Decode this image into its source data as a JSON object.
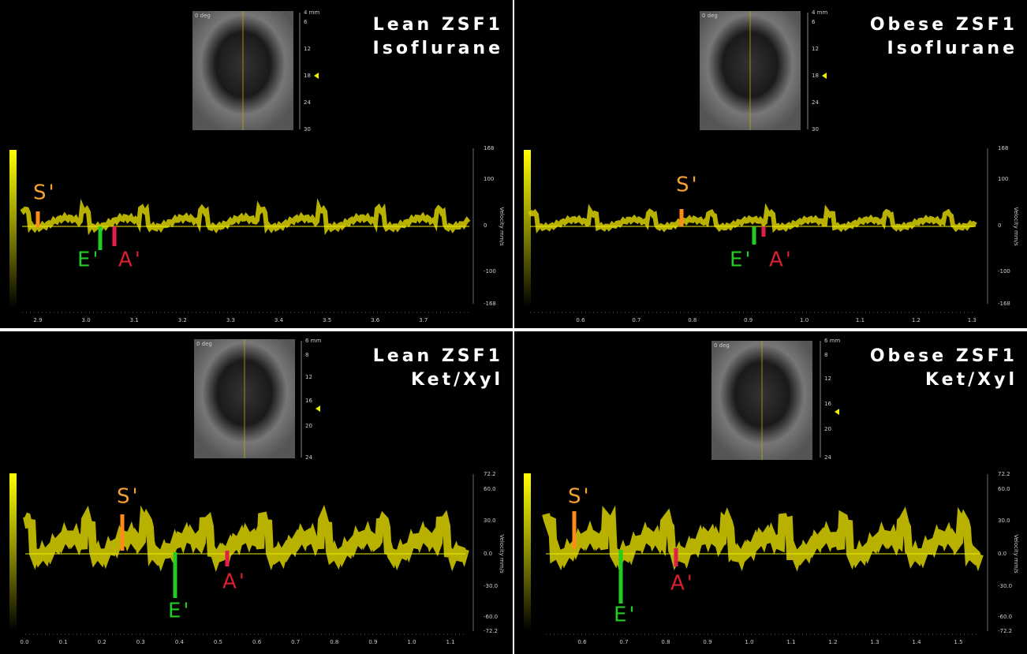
{
  "panels": [
    {
      "title": [
        "Lean ZSF1",
        "Isoflurane"
      ],
      "image_label": "0 deg",
      "depth_ticks": [
        "4 mm",
        "6",
        "12",
        "18",
        "24",
        "30"
      ],
      "velocity_label": "Velocity mm/s",
      "velocity_ticks": [
        "168",
        "100",
        "0",
        "-100",
        "-168"
      ],
      "time_ticks": [
        "2.9",
        "3.0",
        "3.1",
        "3.2",
        "3.3",
        "3.4",
        "3.5",
        "3.6",
        "3.7"
      ],
      "markers": [
        {
          "label": "S'"
        },
        {
          "label": "E'"
        },
        {
          "label": "A'"
        }
      ]
    },
    {
      "title": [
        "Obese ZSF1",
        "Isoflurane"
      ],
      "image_label": "0 deg",
      "depth_ticks": [
        "4 mm",
        "6",
        "12",
        "18",
        "24",
        "30"
      ],
      "velocity_label": "Velocity mm/s",
      "velocity_ticks": [
        "168",
        "100",
        "0",
        "-100",
        "-168"
      ],
      "time_ticks": [
        "0.6",
        "0.7",
        "0.8",
        "0.9",
        "1.0",
        "1.1",
        "1.2",
        "1.3"
      ],
      "markers": [
        {
          "label": "S'"
        },
        {
          "label": "E'"
        },
        {
          "label": "A'"
        }
      ]
    },
    {
      "title": [
        "Lean ZSF1",
        "Ket/Xyl"
      ],
      "image_label": "0 deg",
      "depth_ticks": [
        "6 mm",
        "8",
        "12",
        "16",
        "20",
        "24"
      ],
      "velocity_label": "Velocity mm/s",
      "velocity_ticks": [
        "72.2",
        "60.0",
        "30.0",
        "0.0",
        "-30.0",
        "-60.0",
        "-72.2"
      ],
      "time_ticks": [
        "0.0",
        "0.1",
        "0.2",
        "0.3",
        "0.4",
        "0.5",
        "0.6",
        "0.7",
        "0.8",
        "0.9",
        "1.0",
        "1.1"
      ],
      "markers": [
        {
          "label": "S'"
        },
        {
          "label": "E'"
        },
        {
          "label": "A'"
        }
      ]
    },
    {
      "title": [
        "Obese ZSF1",
        "Ket/Xyl"
      ],
      "image_label": "0 deg",
      "depth_ticks": [
        "6 mm",
        "8",
        "12",
        "16",
        "20",
        "24"
      ],
      "velocity_label": "Velocity mm/s",
      "velocity_ticks": [
        "72.2",
        "60.0",
        "30.0",
        "0.0",
        "-30.0",
        "-60.0",
        "-72.2"
      ],
      "time_ticks": [
        "0.6",
        "0.7",
        "0.8",
        "0.9",
        "1.0",
        "1.1",
        "1.2",
        "1.3",
        "1.4",
        "1.5"
      ],
      "markers": [
        {
          "label": "S'"
        },
        {
          "label": "E'"
        },
        {
          "label": "A'"
        }
      ]
    }
  ]
}
